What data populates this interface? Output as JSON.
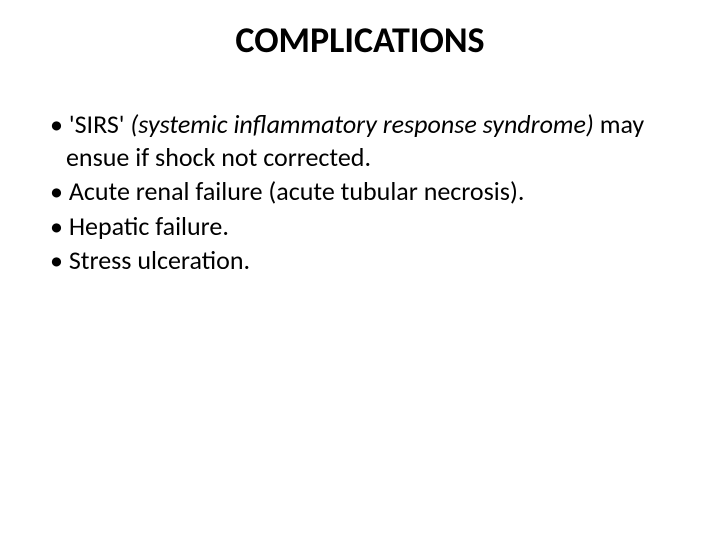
{
  "slide": {
    "title": "COMPLICATIONS",
    "title_fontsize": 36,
    "title_fontweight": 700,
    "body_fontsize": 26,
    "background_color": "#ffffff",
    "text_color": "#000000",
    "bullets": {
      "b1_dot": "• ",
      "b1_a": "'SIRS' ",
      "b1_b": "(systemic inflammatory response syndrome) ",
      "b1_c": "may ensue if shock not corrected.",
      "b2_dot": "• ",
      "b2": "Acute renal failure (acute tubular necrosis).",
      "b3_dot": "• ",
      "b3": "Hepatic failure.",
      "b4_dot": "• ",
      "b4": "Stress ulceration."
    }
  }
}
